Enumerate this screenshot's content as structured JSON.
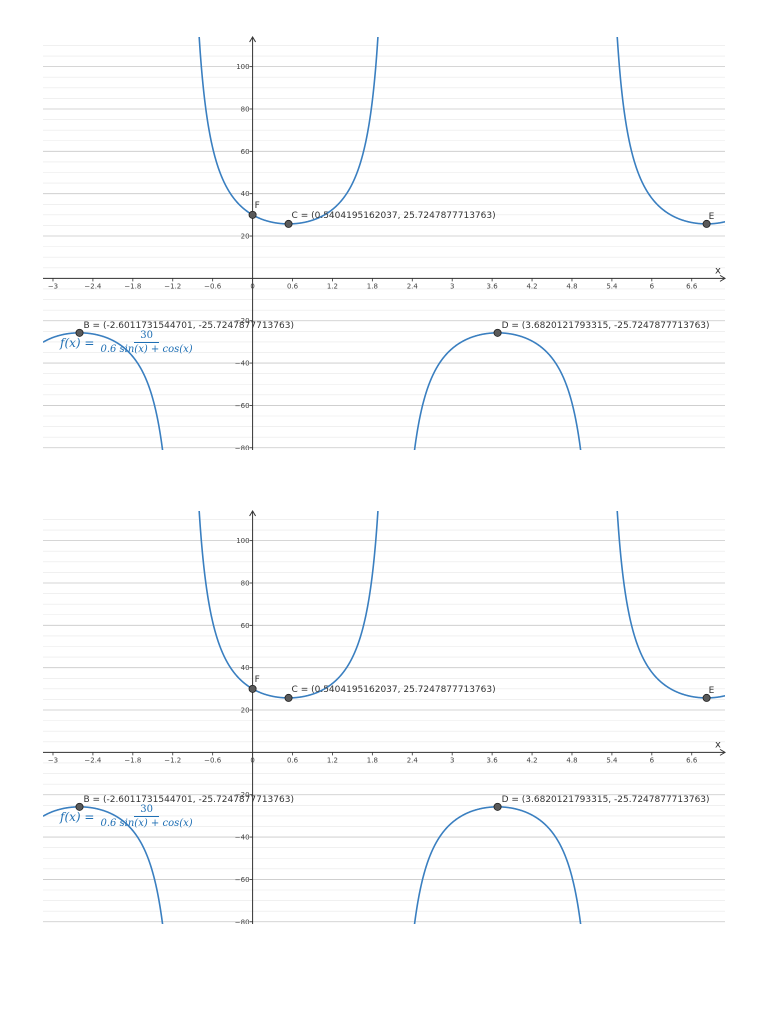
{
  "chart_data": [
    {
      "type": "line",
      "title": "",
      "xlabel": "x",
      "ylabel": "",
      "xlim": [
        -3.15,
        7.1
      ],
      "ylim": [
        -82,
        114
      ],
      "grid": true,
      "x_ticks": [
        "−3",
        "−2.4",
        "−1.8",
        "−1.2",
        "−0.6",
        "0",
        "0.6",
        "1.2",
        "1.8",
        "2.4",
        "3",
        "3.6",
        "4.2",
        "4.8",
        "5.4",
        "6",
        "6.6"
      ],
      "x_tick_values": [
        -3,
        -2.4,
        -1.8,
        -1.2,
        -0.6,
        0,
        0.6,
        1.2,
        1.8,
        2.4,
        3,
        3.6,
        4.2,
        4.8,
        5.4,
        6,
        6.6
      ],
      "y_ticks": [
        "100",
        "80",
        "60",
        "40",
        "20",
        "−20",
        "−40",
        "−60",
        "−80"
      ],
      "y_tick_values": [
        100,
        80,
        60,
        40,
        20,
        -20,
        -40,
        -60,
        -80
      ],
      "function": {
        "name": "f",
        "lhs": "f(x) =",
        "numerator": "30",
        "denominator": "0.6 sin(x) + cos(x)",
        "coef_sin": 0.6,
        "coef_cos": 1,
        "scale": 30,
        "color": "#3a7fc0"
      },
      "points": [
        {
          "name": "B",
          "label": "B = (-2.6011731544701, -25.7247877713763)",
          "x": -2.6011731544701,
          "y": -25.7247877713763
        },
        {
          "name": "C",
          "label": "C = (0.5404195162037, 25.7247877713763)",
          "x": 0.5404195162037,
          "y": 25.7247877713763
        },
        {
          "name": "D",
          "label": "D = (3.6820121793315, -25.7247877713763)",
          "x": 3.6820121793315,
          "y": -25.7247877713763
        },
        {
          "name": "E",
          "label": "E",
          "x": 6.8236048,
          "y": 25.7247877713763
        },
        {
          "name": "F",
          "label": "F",
          "x": 0,
          "y": 30
        }
      ],
      "colors": {
        "curve": "#3a7fc0",
        "point_fill": "#5a5a5a",
        "axis": "#333333",
        "grid_major": "#c8c8c8",
        "grid_minor": "#e8e8e8"
      }
    },
    {
      "type": "line",
      "title": "",
      "xlabel": "x",
      "ylabel": "",
      "xlim": [
        -3.15,
        7.1
      ],
      "ylim": [
        -82,
        114
      ],
      "grid": true,
      "x_ticks": [
        "−3",
        "−2.4",
        "−1.8",
        "−1.2",
        "−0.6",
        "0",
        "0.6",
        "1.2",
        "1.8",
        "2.4",
        "3",
        "3.6",
        "4.2",
        "4.8",
        "5.4",
        "6",
        "6.6"
      ],
      "x_tick_values": [
        -3,
        -2.4,
        -1.8,
        -1.2,
        -0.6,
        0,
        0.6,
        1.2,
        1.8,
        2.4,
        3,
        3.6,
        4.2,
        4.8,
        5.4,
        6,
        6.6
      ],
      "y_ticks": [
        "100",
        "80",
        "60",
        "40",
        "20",
        "−20",
        "−40",
        "−60",
        "−80"
      ],
      "y_tick_values": [
        100,
        80,
        60,
        40,
        20,
        -20,
        -40,
        -60,
        -80
      ],
      "function": {
        "name": "f",
        "lhs": "f(x) =",
        "numerator": "30",
        "denominator": "0.6 sin(x) + cos(x)",
        "coef_sin": 0.6,
        "coef_cos": 1,
        "scale": 30,
        "color": "#3a7fc0"
      },
      "points": [
        {
          "name": "B",
          "label": "B = (-2.6011731544701, -25.7247877713763)",
          "x": -2.6011731544701,
          "y": -25.7247877713763
        },
        {
          "name": "C",
          "label": "C = (0.5404195162037, 25.7247877713763)",
          "x": 0.5404195162037,
          "y": 25.7247877713763
        },
        {
          "name": "D",
          "label": "D = (3.6820121793315, -25.7247877713763)",
          "x": 3.6820121793315,
          "y": -25.7247877713763
        },
        {
          "name": "E",
          "label": "E",
          "x": 6.8236048,
          "y": 25.7247877713763
        },
        {
          "name": "F",
          "label": "F",
          "x": 0,
          "y": 30
        }
      ],
      "colors": {
        "curve": "#3a7fc0",
        "point_fill": "#5a5a5a",
        "axis": "#333333",
        "grid_major": "#c8c8c8",
        "grid_minor": "#e8e8e8"
      }
    }
  ]
}
